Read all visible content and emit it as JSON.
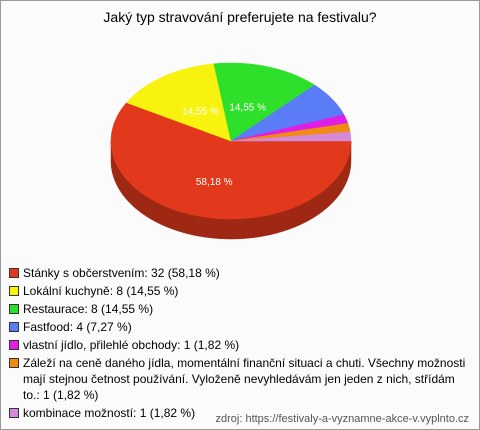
{
  "chart_data": {
    "type": "pie3d",
    "title": "Jaký typ stravování preferujete na festivalu?",
    "categories": [
      "Stánky s občerstvením: 32 (58,18 %)",
      "Lokální kuchyně: 8 (14,55 %)",
      "Restaurace: 8 (14,55 %)",
      "Fastfood: 4 (7,27 %)",
      "vlastní jídlo, přilehlé obchody: 1 (1,82 %)",
      "Záleží na ceně daného jídla, momentální finanční situaci a chuti. Všechny možnosti mají stejnou četnost používání. Vyloženě nevyhledávám jen jeden z nich, střídám to.: 1 (1,82 %)",
      "kombinace možností: 1 (1,82 %)"
    ],
    "values": [
      58.18,
      14.55,
      14.55,
      7.27,
      1.82,
      1.82,
      1.82
    ],
    "value_labels": [
      "58,18 %",
      "14,55 %",
      "14,55 %",
      null,
      null,
      null,
      null
    ],
    "colors": [
      "#e2391d",
      "#f7f20e",
      "#2fe02a",
      "#5b7cf7",
      "#e01ee6",
      "#f08a14",
      "#d48ad8"
    ],
    "source": "zdroj: https://festivaly-a-vyznamne-akce-v.vyplnto.cz"
  }
}
